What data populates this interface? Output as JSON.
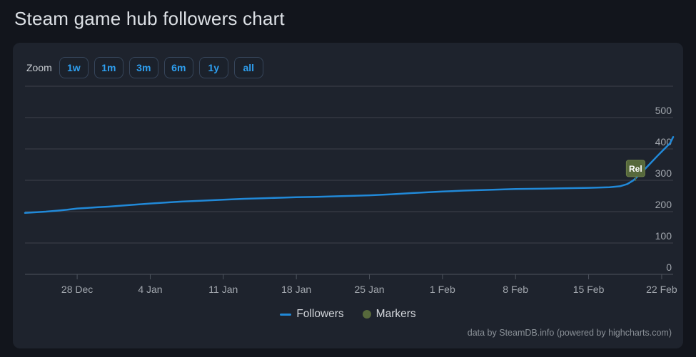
{
  "page_title": "Steam game hub followers chart",
  "toolbar": {
    "zoom_label": "Zoom",
    "buttons": [
      "1w",
      "1m",
      "3m",
      "6m",
      "1y",
      "all"
    ]
  },
  "legend": {
    "items": [
      {
        "label": "Followers",
        "symbol": "line",
        "color": "#2189d8"
      },
      {
        "label": "Markers",
        "symbol": "circle",
        "color": "#57693c"
      }
    ]
  },
  "attribution": "data by SteamDB.info (powered by highcharts.com)",
  "colors": {
    "page_bg": "#12151c",
    "panel_bg": "#1e232d",
    "accent_blue": "#2e9ff0",
    "line_blue": "#2189d8",
    "marker_olive": "#57693c",
    "marker_olive_border": "#6d7f49",
    "grid": "#3d424b",
    "axis": "#4d535d",
    "tick_label": "#a2a7ae",
    "title_text": "#dce0e5",
    "legend_text": "#d3d6db",
    "attribution_text": "#8a9097",
    "flag_text": "#ffffff"
  },
  "chart_data": {
    "type": "line",
    "title": "Steam game hub followers chart",
    "xlabel": "",
    "ylabel": "",
    "ylim": [
      0,
      600
    ],
    "xlim_days": [
      0,
      62.1
    ],
    "grid": true,
    "legend_position": "bottom-center",
    "y_axis_side": "right",
    "y_gridlines": [
      0,
      100,
      200,
      300,
      400,
      500,
      600
    ],
    "y_tick_labels": [
      0,
      100,
      200,
      300,
      400,
      500
    ],
    "x_ticks": [
      {
        "day": 5,
        "label": "28 Dec"
      },
      {
        "day": 12,
        "label": "4 Jan"
      },
      {
        "day": 19,
        "label": "11 Jan"
      },
      {
        "day": 26,
        "label": "18 Jan"
      },
      {
        "day": 33,
        "label": "25 Jan"
      },
      {
        "day": 40,
        "label": "1 Feb"
      },
      {
        "day": 47,
        "label": "8 Feb"
      },
      {
        "day": 54,
        "label": "15 Feb"
      },
      {
        "day": 61,
        "label": "22 Feb"
      }
    ],
    "series": [
      {
        "name": "Followers",
        "color": "#2189d8",
        "points": [
          [
            0,
            196
          ],
          [
            1,
            198
          ],
          [
            2,
            200
          ],
          [
            3,
            203
          ],
          [
            4,
            206
          ],
          [
            5,
            210
          ],
          [
            6,
            212
          ],
          [
            7,
            214
          ],
          [
            8,
            216
          ],
          [
            10,
            221
          ],
          [
            12,
            226
          ],
          [
            14,
            230
          ],
          [
            15,
            232
          ],
          [
            17,
            235
          ],
          [
            19,
            238
          ],
          [
            21,
            241
          ],
          [
            23,
            243
          ],
          [
            26,
            246
          ],
          [
            28,
            247
          ],
          [
            30,
            249
          ],
          [
            33,
            252
          ],
          [
            35,
            255
          ],
          [
            37,
            259
          ],
          [
            40,
            264
          ],
          [
            42,
            267
          ],
          [
            44,
            269
          ],
          [
            47,
            272
          ],
          [
            49,
            273
          ],
          [
            51,
            274
          ],
          [
            54,
            276
          ],
          [
            56,
            278
          ],
          [
            57,
            281
          ],
          [
            57.7,
            288
          ],
          [
            58.3,
            300
          ],
          [
            59,
            322
          ],
          [
            59.8,
            350
          ],
          [
            60.6,
            378
          ],
          [
            61.2,
            398
          ],
          [
            61.8,
            418
          ],
          [
            62.1,
            438
          ]
        ]
      }
    ],
    "flags": [
      {
        "label": "Rel",
        "day": 58.5,
        "value": 298
      }
    ]
  }
}
